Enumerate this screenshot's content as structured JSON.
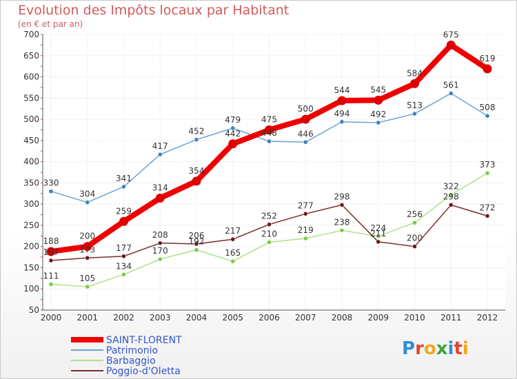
{
  "title": "Evolution des Impôts locaux par Habitant",
  "subtitle": "(en € et par an)",
  "logo": {
    "text": "Proxiti",
    "letter_colors": [
      "#2f8fd6",
      "#e2452c",
      "#f2a81d",
      "#3aa63f",
      "#2f8fd6",
      "#e2452c",
      "#f2a81d"
    ]
  },
  "chart_data": {
    "type": "line",
    "x": [
      "2000",
      "2001",
      "2002",
      "2003",
      "2004",
      "2005",
      "2006",
      "2007",
      "2008",
      "2009",
      "2010",
      "2011",
      "2012"
    ],
    "ylim": [
      50,
      700
    ],
    "yticks": [
      50,
      100,
      150,
      200,
      250,
      300,
      350,
      400,
      450,
      500,
      550,
      600,
      650,
      700
    ],
    "grid": true,
    "legend_position": "bottom-left",
    "series": [
      {
        "name": "SAINT-FLORENT",
        "color": "#ee0000",
        "marker": "#dd0000",
        "label_color": "#333333",
        "legend_color": "#3355cc",
        "thick": true,
        "values": [
          188,
          200,
          259,
          314,
          354,
          442,
          475,
          500,
          544,
          545,
          584,
          675,
          619
        ],
        "labels": [
          "188",
          "200",
          "259",
          "314",
          "354",
          "442",
          "475",
          "500",
          "544",
          "545",
          "584",
          "675",
          "619"
        ]
      },
      {
        "name": "Patrimonio",
        "color": "#6aa3d5",
        "marker": "#3b80c0",
        "label_color": "#333333",
        "legend_color": "#3355cc",
        "thick": false,
        "values": [
          330,
          304,
          341,
          417,
          452,
          479,
          448,
          446,
          494,
          492,
          513,
          561,
          508
        ],
        "labels": [
          "330",
          "304",
          "341",
          "417",
          "452",
          "479",
          "448",
          "446",
          "494",
          "492",
          "513",
          "561",
          "508"
        ]
      },
      {
        "name": "Barbaggio",
        "color": "#aee08a",
        "marker": "#7cc84c",
        "label_color": "#333333",
        "legend_color": "#3355cc",
        "thick": false,
        "values": [
          111,
          105,
          134,
          170,
          192,
          165,
          210,
          219,
          238,
          224,
          256,
          322,
          373
        ],
        "labels": [
          "111",
          "105",
          "134",
          "170",
          "192",
          "165",
          "210",
          "219",
          "238",
          "224",
          "256",
          "322",
          "373"
        ]
      },
      {
        "name": "Poggio-d'Oletta",
        "color": "#7a2a2a",
        "marker": "#6a1818",
        "label_color": "#333333",
        "legend_color": "#3355cc",
        "thick": false,
        "values": [
          167,
          173,
          177,
          208,
          206,
          217,
          252,
          277,
          298,
          211,
          200,
          298,
          272
        ],
        "labels": [
          "167",
          "173",
          "177",
          "208",
          "206",
          "217",
          "252",
          "277",
          "298",
          "211",
          "200",
          "298",
          "272"
        ]
      }
    ]
  }
}
